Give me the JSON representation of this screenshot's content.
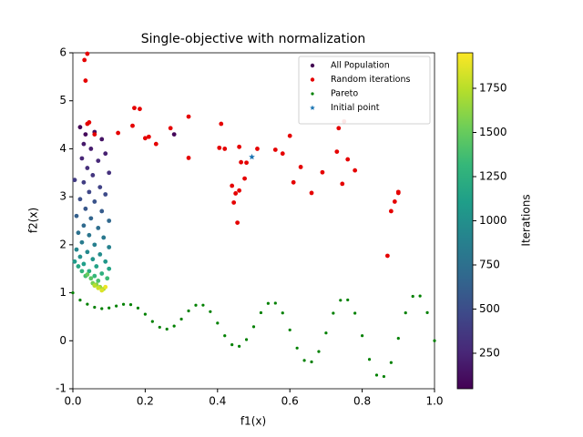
{
  "chart_data": {
    "type": "scatter",
    "title": "Single-objective with normalization",
    "xlabel": "f1(x)",
    "ylabel": "f2(x)",
    "xlim": [
      0,
      1
    ],
    "ylim": [
      -1,
      6
    ],
    "xticks": [
      {
        "value": 0,
        "label": "0.0"
      },
      0.2,
      0.4,
      0.6,
      0.8,
      {
        "value": 1,
        "label": "1.0"
      }
    ],
    "yticks": [
      -1,
      0,
      1,
      2,
      3,
      4,
      5,
      6
    ],
    "legend": "upper right",
    "colorbar": {
      "label": "Iterations",
      "lim": [
        49,
        1951
      ],
      "ticks": [
        250,
        500,
        750,
        1000,
        1250,
        1500,
        1750
      ],
      "colormap": [
        "#440154",
        "#482878",
        "#3e4989",
        "#31688e",
        "#26828e",
        "#1f9e89",
        "#35b779",
        "#6ece58",
        "#b5de2b",
        "#fde725"
      ]
    },
    "series": [
      {
        "name": "All Population",
        "color": "#440154",
        "marker": "dot",
        "x": [
          0.02,
          0.035,
          0.06,
          0.08,
          0.03,
          0.05,
          0.09,
          0.025,
          0.07,
          0.04,
          0.1,
          0.055,
          0.28,
          0.005,
          0.03,
          0.075,
          0.045,
          0.09,
          0.02,
          0.06,
          0.035,
          0.08,
          0.01,
          0.05,
          0.1,
          0.03,
          0.07,
          0.015,
          0.045,
          0.085,
          0.025,
          0.06,
          0.1,
          0.01,
          0.04,
          0.075,
          0.02,
          0.055,
          0.09,
          0.005,
          0.03,
          0.065,
          0.1,
          0.015,
          0.045,
          0.08,
          0.025,
          0.06,
          0.095,
          0.035,
          0.07,
          0.05,
          0.04,
          0.055,
          0.065,
          0.075,
          0.085,
          0.06,
          0.07,
          0.08,
          0.09
        ],
        "y": [
          4.45,
          4.3,
          4.35,
          4.2,
          4.1,
          4.0,
          3.9,
          3.8,
          3.75,
          3.6,
          3.5,
          3.45,
          4.3,
          3.35,
          3.3,
          3.2,
          3.1,
          3.05,
          2.95,
          2.9,
          2.75,
          2.7,
          2.6,
          2.55,
          2.5,
          2.4,
          2.35,
          2.25,
          2.2,
          2.15,
          2.05,
          2.0,
          1.95,
          1.9,
          1.85,
          1.8,
          1.75,
          1.7,
          1.65,
          1.65,
          1.6,
          1.55,
          1.5,
          1.55,
          1.45,
          1.4,
          1.45,
          1.35,
          1.3,
          1.35,
          1.25,
          1.3,
          1.38,
          1.2,
          1.17,
          1.12,
          1.08,
          1.15,
          1.1,
          1.05,
          1.12
        ],
        "c": [
          60,
          90,
          120,
          150,
          180,
          200,
          220,
          250,
          270,
          300,
          320,
          350,
          80,
          380,
          400,
          430,
          460,
          480,
          510,
          540,
          570,
          600,
          630,
          660,
          680,
          700,
          730,
          760,
          790,
          810,
          840,
          870,
          890,
          920,
          950,
          970,
          1000,
          1030,
          1050,
          1080,
          1110,
          1140,
          1160,
          1190,
          1220,
          1250,
          1280,
          1310,
          1340,
          1370,
          1400,
          1450,
          1500,
          1550,
          1600,
          1650,
          1700,
          1750,
          1800,
          1850,
          1900
        ]
      },
      {
        "name": "Random iterations",
        "color": "#e50000",
        "marker": "dot",
        "x": [
          0.04,
          0.032,
          0.035,
          0.04,
          0.045,
          0.06,
          0.125,
          0.165,
          0.17,
          0.185,
          0.2,
          0.21,
          0.23,
          0.27,
          0.32,
          0.32,
          0.405,
          0.41,
          0.42,
          0.44,
          0.445,
          0.45,
          0.455,
          0.46,
          0.46,
          0.465,
          0.475,
          0.48,
          0.51,
          0.56,
          0.58,
          0.6,
          0.61,
          0.63,
          0.66,
          0.69,
          0.73,
          0.735,
          0.745,
          0.75,
          0.76,
          0.78,
          0.87,
          0.88,
          0.89,
          0.9,
          0.9
        ],
        "y": [
          5.98,
          5.85,
          5.42,
          4.52,
          4.55,
          4.3,
          4.33,
          4.48,
          4.85,
          4.83,
          4.22,
          4.25,
          4.1,
          4.43,
          4.67,
          3.81,
          4.02,
          4.52,
          4.0,
          3.23,
          2.88,
          3.07,
          2.46,
          4.04,
          3.13,
          3.72,
          3.38,
          3.71,
          4.0,
          3.98,
          3.9,
          4.27,
          3.3,
          3.62,
          3.08,
          3.51,
          3.94,
          4.43,
          3.27,
          4.57,
          3.78,
          3.55,
          1.77,
          2.7,
          2.9,
          3.1,
          3.08
        ]
      },
      {
        "name": "Pareto",
        "color": "#008000",
        "marker": "small",
        "x": [
          0,
          0.02,
          0.04,
          0.06,
          0.08,
          0.1,
          0.12,
          0.14,
          0.16,
          0.18,
          0.2,
          0.22,
          0.24,
          0.26,
          0.28,
          0.3,
          0.32,
          0.34,
          0.36,
          0.38,
          0.4,
          0.42,
          0.44,
          0.46,
          0.48,
          0.5,
          0.52,
          0.54,
          0.56,
          0.58,
          0.6,
          0.62,
          0.64,
          0.66,
          0.68,
          0.7,
          0.72,
          0.74,
          0.76,
          0.78,
          0.8,
          0.82,
          0.84,
          0.86,
          0.88,
          0.9,
          0.92,
          0.94,
          0.96,
          0.98,
          1
        ],
        "y": [
          1,
          0.847,
          0.762,
          0.698,
          0.67,
          0.684,
          0.724,
          0.759,
          0.752,
          0.682,
          0.553,
          0.402,
          0.282,
          0.243,
          0.306,
          0.452,
          0.622,
          0.74,
          0.742,
          0.607,
          0.368,
          0.105,
          -0.082,
          -0.116,
          0.025,
          0.293,
          0.585,
          0.779,
          0.784,
          0.579,
          0.225,
          -0.152,
          -0.409,
          -0.44,
          -0.224,
          0.163,
          0.575,
          0.844,
          0.851,
          0.575,
          0.106,
          -0.388,
          -0.715,
          -0.745,
          -0.455,
          0.051,
          0.582,
          0.925,
          0.933,
          0.586,
          0
        ]
      },
      {
        "name": "Initial point",
        "color": "#1f77b4",
        "marker": "star",
        "x": [
          0.495
        ],
        "y": [
          3.83
        ]
      }
    ]
  }
}
